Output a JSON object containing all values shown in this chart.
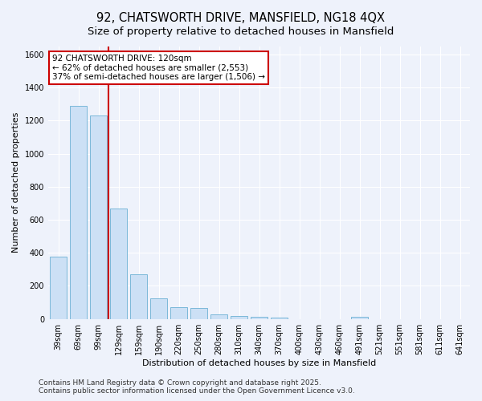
{
  "title_line1": "92, CHATSWORTH DRIVE, MANSFIELD, NG18 4QX",
  "title_line2": "Size of property relative to detached houses in Mansfield",
  "xlabel": "Distribution of detached houses by size in Mansfield",
  "ylabel": "Number of detached properties",
  "categories": [
    "39sqm",
    "69sqm",
    "99sqm",
    "129sqm",
    "159sqm",
    "190sqm",
    "220sqm",
    "250sqm",
    "280sqm",
    "310sqm",
    "340sqm",
    "370sqm",
    "400sqm",
    "430sqm",
    "460sqm",
    "491sqm",
    "521sqm",
    "551sqm",
    "581sqm",
    "611sqm",
    "641sqm"
  ],
  "values": [
    375,
    1290,
    1230,
    670,
    270,
    125,
    70,
    65,
    30,
    18,
    12,
    10,
    0,
    0,
    0,
    15,
    0,
    0,
    0,
    0,
    0
  ],
  "bar_color": "#cce0f5",
  "bar_edge_color": "#7ab8d9",
  "annotation_title": "92 CHATSWORTH DRIVE: 120sqm",
  "annotation_line2": "← 62% of detached houses are smaller (2,553)",
  "annotation_line3": "37% of semi-detached houses are larger (1,506) →",
  "annotation_box_color": "#ffffff",
  "annotation_box_edge": "#cc0000",
  "red_line_color": "#cc0000",
  "footer_line1": "Contains HM Land Registry data © Crown copyright and database right 2025.",
  "footer_line2": "Contains public sector information licensed under the Open Government Licence v3.0.",
  "ylim": [
    0,
    1650
  ],
  "yticks": [
    0,
    200,
    400,
    600,
    800,
    1000,
    1200,
    1400,
    1600
  ],
  "bg_color": "#eef2fb",
  "grid_color": "#ffffff",
  "title_fontsize": 10.5,
  "subtitle_fontsize": 9.5,
  "axis_label_fontsize": 8,
  "tick_fontsize": 7,
  "annotation_fontsize": 7.5,
  "footer_fontsize": 6.5
}
